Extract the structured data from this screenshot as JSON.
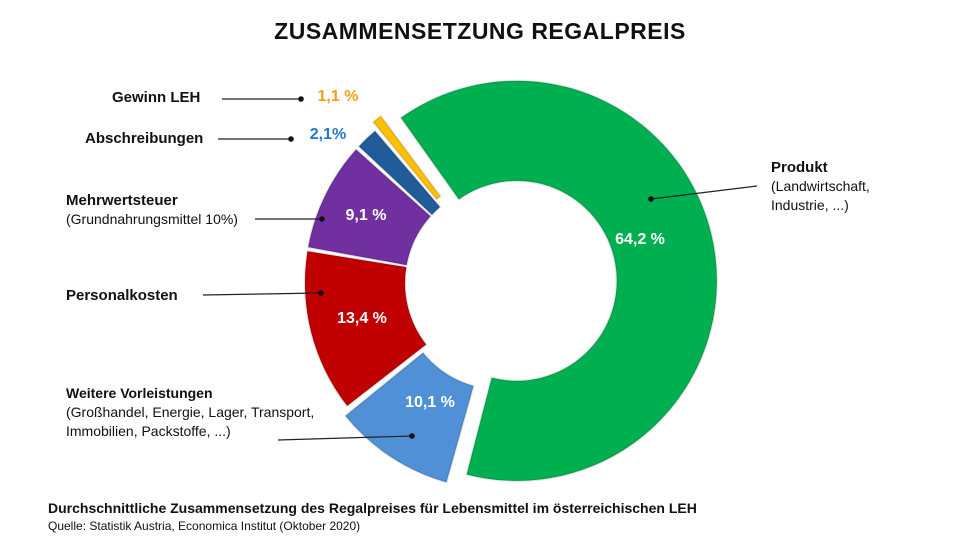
{
  "chart_data": {
    "type": "pie",
    "donut": true,
    "title": "ZUSAMMENSETZUNG REGALPREIS",
    "subtitle": "Durchschnittliche Zusammensetzung des Regalpreises für Lebensmittel im österreichischen LEH",
    "source": "Quelle: Statistik Austria, Economica Institut (Oktober 2020)",
    "slices": [
      {
        "name": "Produkt",
        "detail": "(Landwirtschaft, Industrie, ...)",
        "value": 64.2,
        "label": "64,2 %",
        "color": "#00b050"
      },
      {
        "name": "Weitere Vorleistungen",
        "detail": "(Großhandel, Energie, Lager, Transport, Immobilien, Packstoffe, ...)",
        "value": 10.1,
        "label": "10,1 %",
        "color": "#4f90d6"
      },
      {
        "name": "Personalkosten",
        "detail": "",
        "value": 13.4,
        "label": "13,4 %",
        "color": "#c00000"
      },
      {
        "name": "Mehrwertsteuer",
        "detail": "(Grundnahrungsmittel 10%)",
        "value": 9.1,
        "label": "9,1 %",
        "color": "#7030a0"
      },
      {
        "name": "Abschreibungen",
        "detail": "",
        "value": 2.1,
        "label": "2,1%",
        "color": "#1f5c99"
      },
      {
        "name": "Gewinn LEH",
        "detail": "",
        "value": 1.1,
        "label": "1,1 %",
        "color": "#ffc000"
      }
    ]
  }
}
